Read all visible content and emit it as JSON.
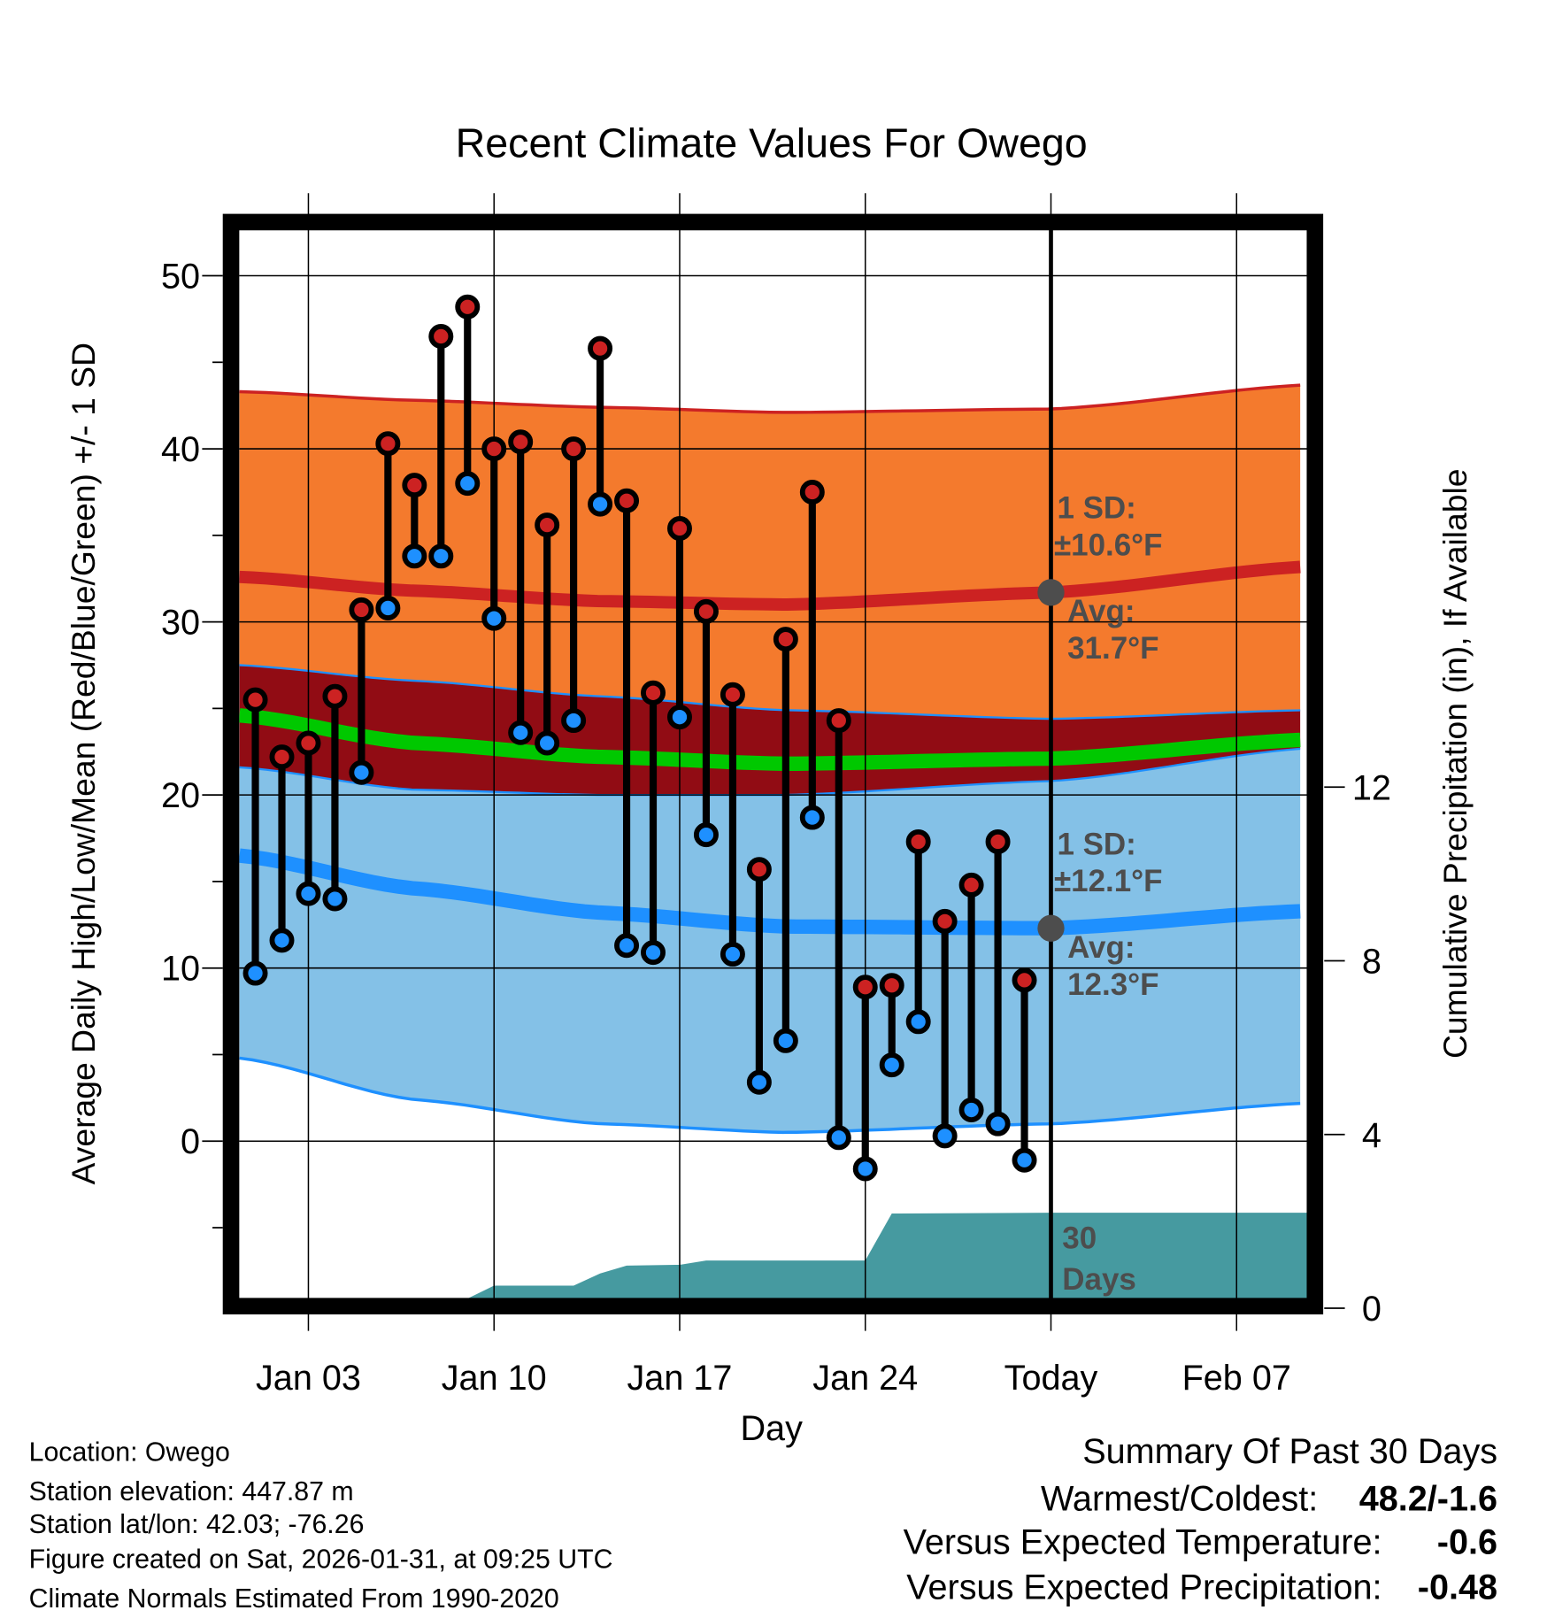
{
  "chart_data": {
    "type": "line",
    "title": "Recent Climate Values For Owego",
    "xlabel": "Day",
    "ylabel": "Average Daily High/Low/Mean (Red/Blue/Green) +/- 1 SD",
    "ylabel_right": "Cumulative Precipitation (in), If Available",
    "ylim": [
      -9.2,
      52.7
    ],
    "ylim_right": [
      0,
      14.7
    ],
    "xlim_day_of_january": [
      0.4,
      40.7
    ],
    "grid": true,
    "x_ticks": [
      {
        "day": 3,
        "label": "Jan 03"
      },
      {
        "day": 10,
        "label": "Jan 10"
      },
      {
        "day": 17,
        "label": "Jan 17"
      },
      {
        "day": 24,
        "label": "Jan 24"
      },
      {
        "day": 31,
        "label": "Today"
      },
      {
        "day": 38,
        "label": "Feb 07"
      }
    ],
    "y_ticks": [
      0,
      10,
      20,
      30,
      40,
      50
    ],
    "y_ticks_right": [
      0,
      4,
      8,
      12
    ],
    "days": [
      1,
      2,
      3,
      4,
      5,
      6,
      7,
      8,
      9,
      10,
      11,
      12,
      13,
      14,
      15,
      16,
      17,
      18,
      19,
      20,
      21,
      22,
      23,
      24,
      25,
      26,
      27,
      28,
      29,
      30
    ],
    "series": [
      {
        "name": "Daily High",
        "color": "#cc2222",
        "values": [
          25.5,
          22.2,
          23.0,
          25.7,
          30.7,
          40.3,
          37.9,
          46.5,
          48.2,
          40.0,
          40.4,
          35.6,
          40.0,
          45.8,
          37.0,
          25.9,
          35.4,
          30.6,
          25.8,
          15.7,
          29.0,
          37.5,
          24.3,
          8.9,
          9.0,
          17.3,
          12.7,
          14.8,
          17.3,
          9.3
        ]
      },
      {
        "name": "Daily Low",
        "color": "#1e90ff",
        "values": [
          9.7,
          11.6,
          14.3,
          14.0,
          21.3,
          30.8,
          33.8,
          33.8,
          38.0,
          30.2,
          23.6,
          23.0,
          24.3,
          36.8,
          11.3,
          10.9,
          24.5,
          17.7,
          10.8,
          3.4,
          5.8,
          18.7,
          0.2,
          -1.6,
          4.4,
          6.9,
          0.3,
          1.8,
          1.0,
          -1.1
        ]
      }
    ],
    "normals": {
      "days": [
        0.4,
        7,
        14,
        21,
        31,
        40.7
      ],
      "high_mean": [
        32.6,
        31.8,
        31.2,
        31.0,
        31.7,
        33.2
      ],
      "high_upper": [
        43.3,
        42.8,
        42.4,
        42.1,
        42.3,
        43.7
      ],
      "high_lower": [
        27.5,
        26.6,
        25.7,
        24.9,
        24.4,
        24.9
      ],
      "mean": [
        24.6,
        23.0,
        22.2,
        21.8,
        22.1,
        23.2
      ],
      "low_mean": [
        16.5,
        14.6,
        13.2,
        12.4,
        12.3,
        13.3
      ],
      "low_upper": [
        21.6,
        20.3,
        20.0,
        20.0,
        20.8,
        22.7
      ],
      "low_lower": [
        4.8,
        2.4,
        1.0,
        0.5,
        1.0,
        2.2
      ]
    },
    "precip": {
      "color": "#469aa0",
      "days": [
        0.4,
        7,
        8,
        9,
        10,
        13,
        14,
        15,
        17,
        18,
        23,
        24,
        25,
        31,
        40.7
      ],
      "values": [
        0,
        0,
        0.2,
        0.22,
        0.52,
        0.52,
        0.8,
        0.98,
        1.0,
        1.1,
        1.1,
        1.1,
        2.18,
        2.2,
        2.2
      ]
    },
    "colors": {
      "high_band": "#f47a2d",
      "overlap_band": "#910c14",
      "low_band": "#84c1e7",
      "high_line": "#cc2222",
      "low_line": "#1e90ff",
      "mean_line": "#00c800"
    },
    "annotations": {
      "high_sd_label": "1 SD:",
      "high_sd_value": "±10.6°F",
      "high_avg_label": "Avg:",
      "high_avg_value": "31.7°F",
      "high_avg": 31.7,
      "low_sd_label": "1 SD:",
      "low_sd_value": "±12.1°F",
      "low_avg_label": "Avg:",
      "low_avg_value": "12.3°F",
      "low_avg": 12.3,
      "precip_label_1": "30",
      "precip_label_2": "Days"
    }
  },
  "footer": {
    "location": "Location: Owego",
    "elevation": "Station elevation: 447.87 m",
    "latlon": "Station lat/lon: 42.03; -76.26",
    "created": "Figure created on Sat, 2026-01-31, at 09:25 UTC",
    "normals": "Climate Normals Estimated From 1990-2020"
  },
  "summary": {
    "title": "Summary Of Past 30 Days",
    "warm_cold_label": "Warmest/Coldest:",
    "warm_cold_value": "48.2/-1.6",
    "temp_label": "Versus Expected Temperature:",
    "temp_value": "-0.6",
    "temp_color": "#1e90ff",
    "precip_label": "Versus Expected Precipitation:",
    "precip_value": "-0.48",
    "precip_color": "#a0522d"
  }
}
